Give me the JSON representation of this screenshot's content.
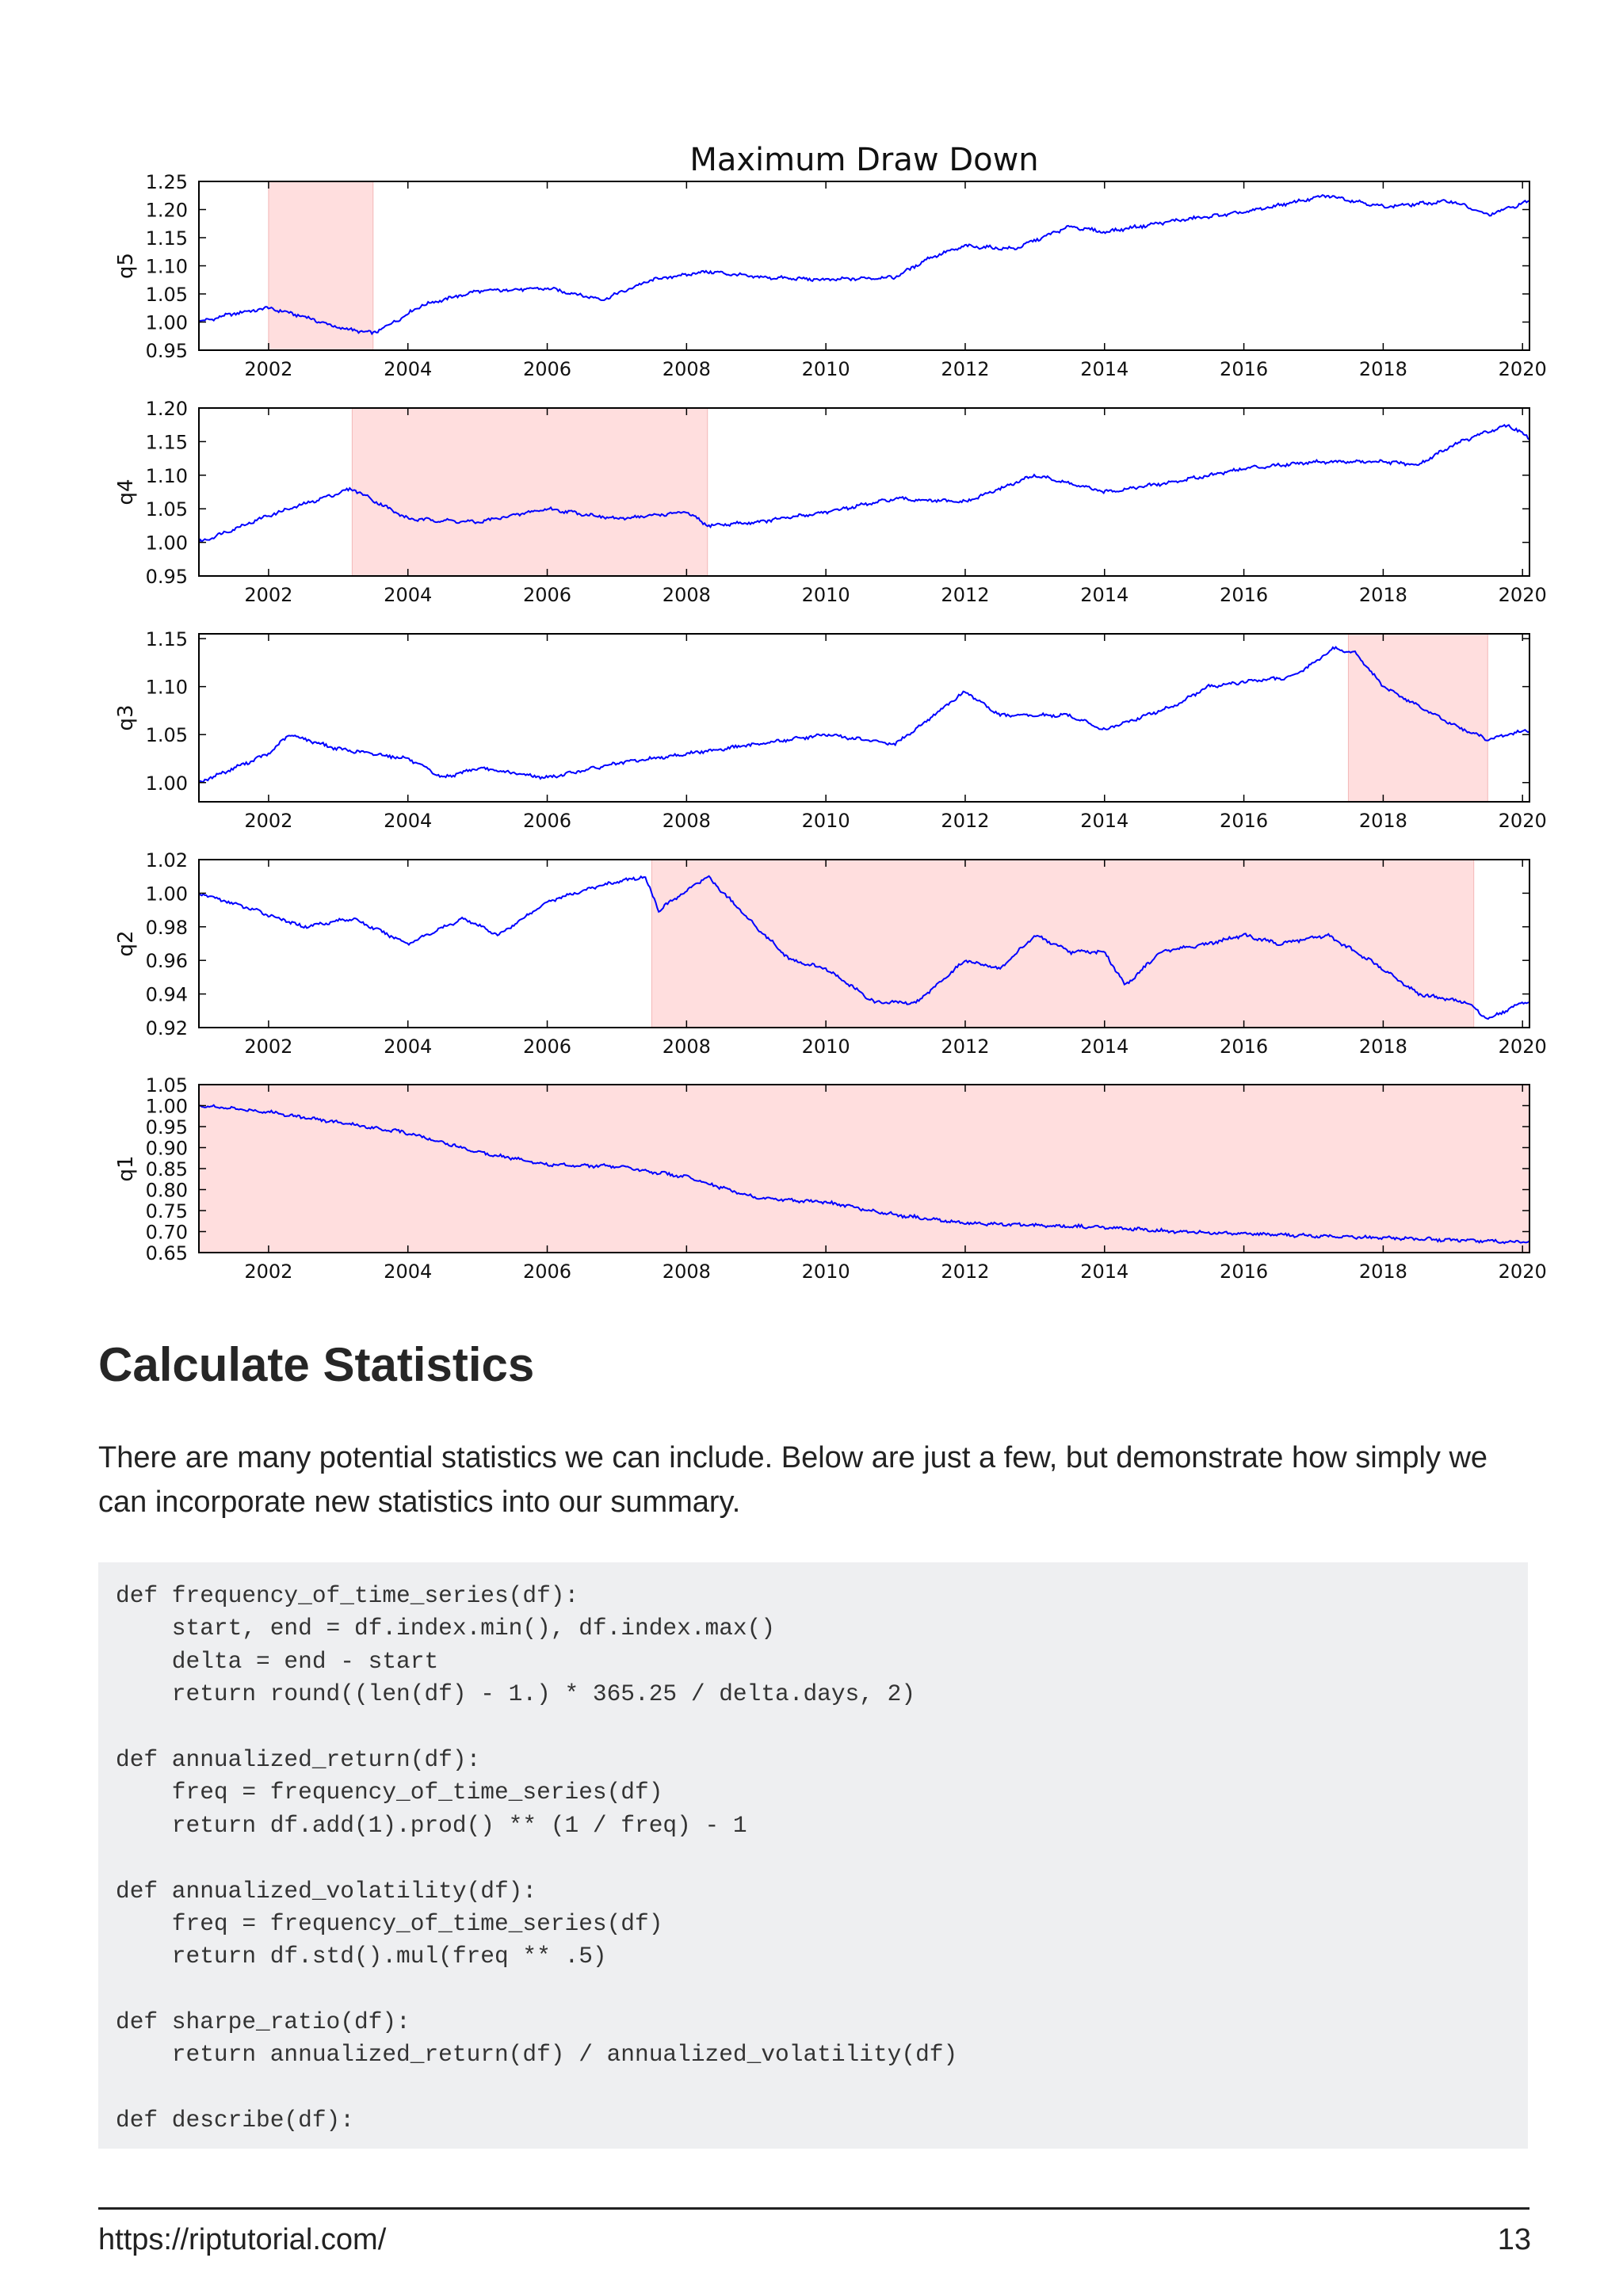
{
  "chart_data": {
    "type": "line",
    "title": "Maximum Draw Down",
    "x_ticks": [
      2002,
      2004,
      2006,
      2008,
      2010,
      2012,
      2014,
      2016,
      2018,
      2020
    ],
    "xlim": [
      2001.0,
      2020.1
    ],
    "line_color": "#0000ff",
    "drawdown_shading_color": "#ffdede",
    "panels": [
      {
        "ylabel": "q5",
        "ylim": [
          0.95,
          1.25
        ],
        "y_ticks": [
          "0.95",
          "1.00",
          "1.05",
          "1.10",
          "1.15",
          "1.20",
          "1.25"
        ],
        "max_drawdown_period": [
          2002.0,
          2003.5
        ],
        "series": [
          [
            2001.0,
            1.0
          ],
          [
            2001.5,
            1.015
          ],
          [
            2002.0,
            1.025
          ],
          [
            2002.5,
            1.01
          ],
          [
            2003.0,
            0.99
          ],
          [
            2003.5,
            0.98
          ],
          [
            2003.8,
            1.0
          ],
          [
            2004.2,
            1.03
          ],
          [
            2005.0,
            1.055
          ],
          [
            2006.0,
            1.06
          ],
          [
            2006.8,
            1.04
          ],
          [
            2007.5,
            1.075
          ],
          [
            2008.3,
            1.09
          ],
          [
            2009.0,
            1.08
          ],
          [
            2010.0,
            1.075
          ],
          [
            2011.0,
            1.08
          ],
          [
            2011.5,
            1.115
          ],
          [
            2012.0,
            1.135
          ],
          [
            2012.7,
            1.13
          ],
          [
            2013.5,
            1.17
          ],
          [
            2014.0,
            1.16
          ],
          [
            2015.0,
            1.18
          ],
          [
            2016.0,
            1.195
          ],
          [
            2017.2,
            1.225
          ],
          [
            2018.0,
            1.205
          ],
          [
            2019.0,
            1.215
          ],
          [
            2019.5,
            1.19
          ],
          [
            2020.1,
            1.215
          ]
        ]
      },
      {
        "ylabel": "q4",
        "ylim": [
          0.95,
          1.2
        ],
        "y_ticks": [
          "0.95",
          "1.00",
          "1.05",
          "1.10",
          "1.15",
          "1.20"
        ],
        "max_drawdown_period": [
          2003.2,
          2008.3
        ],
        "series": [
          [
            2001.0,
            1.0
          ],
          [
            2002.0,
            1.04
          ],
          [
            2003.2,
            1.08
          ],
          [
            2004.0,
            1.035
          ],
          [
            2005.0,
            1.03
          ],
          [
            2006.0,
            1.05
          ],
          [
            2007.0,
            1.035
          ],
          [
            2008.0,
            1.045
          ],
          [
            2008.3,
            1.025
          ],
          [
            2009.0,
            1.03
          ],
          [
            2010.0,
            1.045
          ],
          [
            2011.0,
            1.065
          ],
          [
            2012.0,
            1.06
          ],
          [
            2013.0,
            1.1
          ],
          [
            2014.0,
            1.075
          ],
          [
            2015.0,
            1.09
          ],
          [
            2016.0,
            1.11
          ],
          [
            2017.0,
            1.12
          ],
          [
            2018.0,
            1.12
          ],
          [
            2018.5,
            1.115
          ],
          [
            2019.0,
            1.145
          ],
          [
            2019.5,
            1.165
          ],
          [
            2019.8,
            1.175
          ],
          [
            2020.1,
            1.155
          ]
        ]
      },
      {
        "ylabel": "q3",
        "ylim": [
          0.98,
          1.155
        ],
        "y_ticks": [
          "1.00",
          "1.05",
          "1.10",
          "1.15"
        ],
        "max_drawdown_period": [
          2017.5,
          2019.5
        ],
        "series": [
          [
            2001.0,
            1.0
          ],
          [
            2002.0,
            1.03
          ],
          [
            2002.3,
            1.05
          ],
          [
            2003.0,
            1.035
          ],
          [
            2004.0,
            1.025
          ],
          [
            2004.5,
            1.005
          ],
          [
            2005.0,
            1.015
          ],
          [
            2006.0,
            1.005
          ],
          [
            2007.0,
            1.02
          ],
          [
            2008.0,
            1.03
          ],
          [
            2009.0,
            1.04
          ],
          [
            2010.0,
            1.05
          ],
          [
            2011.0,
            1.04
          ],
          [
            2012.0,
            1.095
          ],
          [
            2012.5,
            1.07
          ],
          [
            2013.5,
            1.07
          ],
          [
            2014.0,
            1.055
          ],
          [
            2015.0,
            1.08
          ],
          [
            2015.5,
            1.1
          ],
          [
            2016.0,
            1.105
          ],
          [
            2016.7,
            1.11
          ],
          [
            2017.3,
            1.14
          ],
          [
            2017.6,
            1.135
          ],
          [
            2018.0,
            1.1
          ],
          [
            2018.5,
            1.08
          ],
          [
            2019.0,
            1.06
          ],
          [
            2019.5,
            1.045
          ],
          [
            2020.1,
            1.055
          ]
        ]
      },
      {
        "ylabel": "q2",
        "ylim": [
          0.92,
          1.02
        ],
        "y_ticks": [
          "0.92",
          "0.94",
          "0.96",
          "0.98",
          "1.00",
          "1.02"
        ],
        "max_drawdown_period": [
          2007.5,
          2019.3
        ],
        "series": [
          [
            2001.0,
            1.0
          ],
          [
            2001.8,
            0.99
          ],
          [
            2002.5,
            0.98
          ],
          [
            2003.2,
            0.985
          ],
          [
            2004.0,
            0.97
          ],
          [
            2004.8,
            0.985
          ],
          [
            2005.3,
            0.975
          ],
          [
            2006.0,
            0.995
          ],
          [
            2006.8,
            1.005
          ],
          [
            2007.4,
            1.01
          ],
          [
            2007.6,
            0.99
          ],
          [
            2008.3,
            1.01
          ],
          [
            2009.0,
            0.98
          ],
          [
            2009.5,
            0.96
          ],
          [
            2010.0,
            0.955
          ],
          [
            2010.7,
            0.935
          ],
          [
            2011.3,
            0.935
          ],
          [
            2012.0,
            0.96
          ],
          [
            2012.5,
            0.955
          ],
          [
            2013.0,
            0.975
          ],
          [
            2013.5,
            0.965
          ],
          [
            2014.0,
            0.965
          ],
          [
            2014.3,
            0.945
          ],
          [
            2014.8,
            0.965
          ],
          [
            2015.5,
            0.97
          ],
          [
            2016.0,
            0.975
          ],
          [
            2016.5,
            0.97
          ],
          [
            2017.2,
            0.975
          ],
          [
            2018.0,
            0.955
          ],
          [
            2018.5,
            0.94
          ],
          [
            2019.2,
            0.935
          ],
          [
            2019.5,
            0.925
          ],
          [
            2020.0,
            0.935
          ]
        ]
      },
      {
        "ylabel": "q1",
        "ylim": [
          0.65,
          1.05
        ],
        "y_ticks": [
          "0.65",
          "0.70",
          "0.75",
          "0.80",
          "0.85",
          "0.90",
          "0.95",
          "1.00",
          "1.05"
        ],
        "max_drawdown_period": [
          2001.0,
          2020.1
        ],
        "series": [
          [
            2001.0,
            1.0
          ],
          [
            2002.0,
            0.985
          ],
          [
            2003.0,
            0.96
          ],
          [
            2004.0,
            0.935
          ],
          [
            2005.0,
            0.89
          ],
          [
            2006.0,
            0.86
          ],
          [
            2007.0,
            0.855
          ],
          [
            2008.0,
            0.83
          ],
          [
            2009.0,
            0.78
          ],
          [
            2010.0,
            0.77
          ],
          [
            2011.0,
            0.74
          ],
          [
            2012.0,
            0.72
          ],
          [
            2013.0,
            0.715
          ],
          [
            2014.0,
            0.71
          ],
          [
            2015.0,
            0.7
          ],
          [
            2016.0,
            0.695
          ],
          [
            2017.0,
            0.69
          ],
          [
            2018.0,
            0.685
          ],
          [
            2019.0,
            0.68
          ],
          [
            2020.1,
            0.675
          ]
        ]
      }
    ]
  },
  "section": {
    "heading": "Calculate Statistics",
    "intro": "There are many potential statistics we can include. Below are just a few, but demonstrate how simply we can incorporate new statistics into our summary."
  },
  "code_lines": [
    "def frequency_of_time_series(df):",
    "    start, end = df.index.min(), df.index.max()",
    "    delta = end - start",
    "    return round((len(df) - 1.) * 365.25 / delta.days, 2)",
    "",
    "def annualized_return(df):",
    "    freq = frequency_of_time_series(df)",
    "    return df.add(1).prod() ** (1 / freq) - 1",
    "",
    "def annualized_volatility(df):",
    "    freq = frequency_of_time_series(df)",
    "    return df.std().mul(freq ** .5)",
    "",
    "def sharpe_ratio(df):",
    "    return annualized_return(df) / annualized_volatility(df)",
    "",
    "def describe(df):"
  ],
  "footer": {
    "url": "https://riptutorial.com/",
    "page_number": "13"
  }
}
